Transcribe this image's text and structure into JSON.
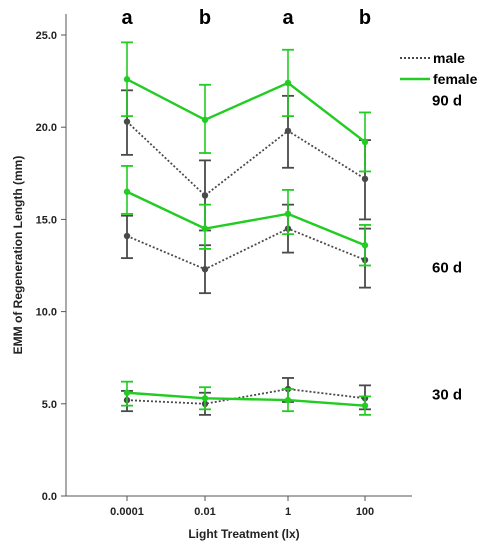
{
  "chart_data": {
    "type": "line",
    "xlabel": "Light Treatment (lx)",
    "ylabel": "EMM of Regeneration Length (mm)",
    "categories": [
      "0.0001",
      "0.01",
      "1",
      "100"
    ],
    "ylim": [
      0,
      25
    ],
    "yticks": [
      "0.0",
      "5.0",
      "10.0",
      "15.0",
      "20.0",
      "25.0"
    ],
    "significance": [
      "a",
      "b",
      "a",
      "b"
    ],
    "legend": {
      "position": "top-right",
      "entries": [
        "male",
        "female"
      ]
    },
    "colors": {
      "male": "#4a4a4a",
      "female": "#22cc22"
    },
    "groups": [
      {
        "label": "90 d",
        "series": [
          {
            "name": "male",
            "values": [
              20.3,
              16.3,
              19.8,
              17.2
            ],
            "lower": [
              18.5,
              14.4,
              17.8,
              15.0
            ],
            "upper": [
              22.0,
              18.2,
              21.7,
              19.3
            ]
          },
          {
            "name": "female",
            "values": [
              22.6,
              20.4,
              22.4,
              19.2
            ],
            "lower": [
              20.6,
              18.6,
              20.6,
              17.6
            ],
            "upper": [
              24.6,
              22.3,
              24.2,
              20.8
            ]
          }
        ]
      },
      {
        "label": "60 d",
        "series": [
          {
            "name": "male",
            "values": [
              14.1,
              12.3,
              14.5,
              12.8
            ],
            "lower": [
              12.9,
              11.0,
              13.2,
              11.3
            ],
            "upper": [
              15.2,
              13.6,
              15.8,
              14.5
            ]
          },
          {
            "name": "female",
            "values": [
              16.5,
              14.5,
              15.3,
              13.6
            ],
            "lower": [
              15.3,
              13.4,
              14.2,
              12.5
            ],
            "upper": [
              17.9,
              15.8,
              16.6,
              14.7
            ]
          }
        ]
      },
      {
        "label": "30 d",
        "series": [
          {
            "name": "male",
            "values": [
              5.2,
              5.0,
              5.8,
              5.3
            ],
            "lower": [
              4.6,
              4.4,
              5.1,
              4.7
            ],
            "upper": [
              5.7,
              5.6,
              6.4,
              6.0
            ]
          },
          {
            "name": "female",
            "values": [
              5.6,
              5.3,
              5.2,
              4.9
            ],
            "lower": [
              4.9,
              4.7,
              4.6,
              4.4
            ],
            "upper": [
              6.2,
              5.9,
              5.8,
              5.4
            ]
          }
        ]
      }
    ]
  }
}
